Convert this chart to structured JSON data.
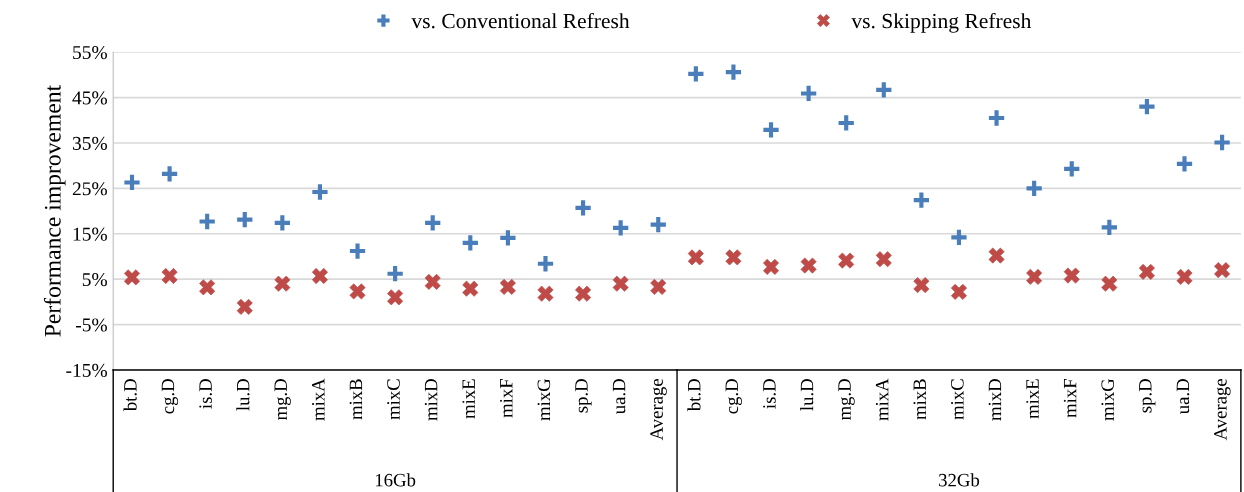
{
  "chart_data": [
    {
      "type": "scatter",
      "xlabel": "16Gb",
      "ylabel": "Performance improvement",
      "categories": [
        "bt.D",
        "cg.D",
        "is.D",
        "lu.D",
        "mg.D",
        "mixA",
        "mixB",
        "mixC",
        "mixD",
        "mixE",
        "mixF",
        "mixG",
        "sp.D",
        "ua.D",
        "Average"
      ],
      "series": [
        {
          "name": "vs. Conventional Refresh",
          "color": "#4a7ebb",
          "values": [
            26.3,
            28.2,
            17.7,
            18.1,
            17.4,
            24.2,
            11.2,
            6.2,
            17.4,
            13.0,
            14.1,
            8.4,
            20.7,
            16.3,
            17.0
          ]
        },
        {
          "name": "vs. Skipping Refresh",
          "color": "#be4b48",
          "marker": "cross",
          "values": [
            5.4,
            5.7,
            3.2,
            -1.1,
            4.0,
            5.7,
            2.3,
            1.0,
            4.4,
            2.9,
            3.3,
            1.8,
            1.8,
            4.0,
            3.3
          ]
        }
      ],
      "ylim": [
        -15,
        55
      ],
      "yticks": [
        {
          "value": -15,
          "label": "-15%"
        },
        {
          "value": -5,
          "label": "-5%"
        },
        {
          "value": 5,
          "label": "5%"
        },
        {
          "value": 15,
          "label": "15%"
        },
        {
          "value": 25,
          "label": "25%"
        },
        {
          "value": 35,
          "label": "35%"
        },
        {
          "value": 45,
          "label": "45%"
        },
        {
          "value": 55,
          "label": "55%"
        }
      ],
      "grid": "y",
      "legend": "top"
    },
    {
      "type": "scatter",
      "xlabel": "32Gb",
      "categories": [
        "bt.D",
        "cg.D",
        "is.D",
        "lu.D",
        "mg.D",
        "mixA",
        "mixB",
        "mixC",
        "mixD",
        "mixE",
        "mixF",
        "mixG",
        "sp.D",
        "ua.D",
        "Average"
      ],
      "series": [
        {
          "name": "vs. Conventional Refresh",
          "color": "#4a7ebb",
          "values": [
            50.2,
            50.6,
            37.9,
            45.9,
            39.4,
            46.7,
            22.4,
            14.2,
            40.5,
            25.0,
            29.3,
            16.4,
            43.0,
            30.4,
            35.1
          ]
        },
        {
          "name": "vs. Skipping Refresh",
          "color": "#be4b48",
          "marker": "cross",
          "values": [
            9.8,
            9.8,
            7.7,
            8.0,
            9.1,
            9.4,
            3.7,
            2.2,
            10.2,
            5.5,
            5.8,
            4.0,
            6.6,
            5.5,
            7.0
          ]
        }
      ],
      "ylim": [
        -15,
        55
      ],
      "yticks": [
        {
          "value": -15,
          "label": null
        },
        {
          "value": -5,
          "label": null
        },
        {
          "value": 5,
          "label": null
        },
        {
          "value": 15,
          "label": null
        },
        {
          "value": 25,
          "label": null
        },
        {
          "value": 35,
          "label": null
        },
        {
          "value": 45,
          "label": null
        },
        {
          "value": 55,
          "label": null
        }
      ],
      "grid": "y",
      "tick_labels": "x"
    }
  ]
}
